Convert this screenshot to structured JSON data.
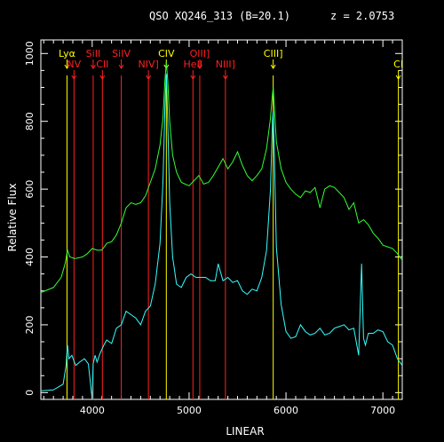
{
  "chart_data": {
    "type": "line",
    "title": "QSO XQ246_313 (B=20.1)",
    "redshift_label": "z = 2.0753",
    "xlabel": "LINEAR",
    "ylabel": "Relative Flux",
    "xlim": [
      3470,
      7200
    ],
    "ylim": [
      -20,
      1040
    ],
    "x_ticks": [
      4000,
      5000,
      6000,
      7000
    ],
    "y_ticks": [
      0,
      200,
      400,
      600,
      800,
      1000
    ],
    "colors": {
      "background": "#000000",
      "frame": "#ffffff",
      "emission_marker": "#ffff00",
      "absorption_marker": "#ff2020",
      "upper_spectrum": "#33ff33",
      "lower_spectrum": "#33ffff"
    },
    "line_markers": [
      {
        "label": "Lyα",
        "wavelength": 3740,
        "color": "yellow",
        "row": 0
      },
      {
        "label": "NV",
        "wavelength": 3812,
        "color": "red",
        "row": 1
      },
      {
        "label": "SiII",
        "wavelength": 4010,
        "color": "red",
        "row": 0
      },
      {
        "label": "CII",
        "wavelength": 4105,
        "color": "red",
        "row": 1
      },
      {
        "label": "SiIV",
        "wavelength": 4300,
        "color": "red",
        "row": 0
      },
      {
        "label": "NIV]",
        "wavelength": 4580,
        "color": "red",
        "row": 1
      },
      {
        "label": "CIV",
        "wavelength": 4765,
        "color": "yellow",
        "row": 0
      },
      {
        "label": "HeII",
        "wavelength": 5040,
        "color": "red",
        "row": 1
      },
      {
        "label": "OIII]",
        "wavelength": 5110,
        "color": "red",
        "row": 0
      },
      {
        "label": "NIII]",
        "wavelength": 5375,
        "color": "red",
        "row": 1
      },
      {
        "label": "CIII]",
        "wavelength": 5868,
        "color": "yellow",
        "row": 0
      },
      {
        "label": "CI",
        "wavelength": 7160,
        "color": "yellow",
        "row": 1
      }
    ],
    "series": [
      {
        "color": "green",
        "x": [
          3470,
          3600,
          3680,
          3720,
          3745,
          3770,
          3820,
          3900,
          3950,
          4000,
          4050,
          4100,
          4150,
          4200,
          4250,
          4300,
          4350,
          4400,
          4450,
          4500,
          4550,
          4600,
          4650,
          4700,
          4730,
          4750,
          4765,
          4780,
          4800,
          4830,
          4870,
          4920,
          5000,
          5050,
          5100,
          5150,
          5200,
          5250,
          5300,
          5350,
          5400,
          5450,
          5500,
          5550,
          5600,
          5650,
          5700,
          5750,
          5800,
          5840,
          5860,
          5868,
          5880,
          5900,
          5950,
          6000,
          6050,
          6100,
          6150,
          6200,
          6250,
          6300,
          6350,
          6400,
          6450,
          6500,
          6550,
          6600,
          6650,
          6700,
          6750,
          6800,
          6850,
          6900,
          6950,
          7000,
          7050,
          7100,
          7150,
          7200
        ],
        "y": [
          295,
          310,
          340,
          380,
          420,
          400,
          395,
          400,
          410,
          425,
          420,
          420,
          440,
          445,
          465,
          500,
          545,
          560,
          555,
          560,
          580,
          620,
          660,
          730,
          810,
          920,
          975,
          920,
          800,
          700,
          650,
          620,
          610,
          625,
          640,
          615,
          620,
          640,
          665,
          690,
          660,
          680,
          710,
          670,
          640,
          625,
          640,
          660,
          720,
          810,
          880,
          900,
          840,
          740,
          660,
          620,
          600,
          585,
          575,
          595,
          590,
          605,
          545,
          600,
          610,
          605,
          590,
          575,
          540,
          560,
          500,
          510,
          495,
          470,
          455,
          435,
          430,
          425,
          410,
          390
        ]
      },
      {
        "color": "cyan",
        "x": [
          3470,
          3600,
          3700,
          3730,
          3745,
          3760,
          3790,
          3830,
          3870,
          3920,
          3960,
          4000,
          4010,
          4030,
          4050,
          4080,
          4120,
          4150,
          4200,
          4250,
          4300,
          4350,
          4400,
          4450,
          4500,
          4550,
          4600,
          4650,
          4700,
          4730,
          4750,
          4765,
          4780,
          4800,
          4830,
          4870,
          4920,
          4970,
          5020,
          5070,
          5120,
          5170,
          5220,
          5270,
          5300,
          5350,
          5400,
          5450,
          5500,
          5550,
          5600,
          5650,
          5700,
          5750,
          5800,
          5840,
          5860,
          5868,
          5880,
          5900,
          5950,
          6000,
          6050,
          6100,
          6150,
          6200,
          6250,
          6300,
          6350,
          6400,
          6450,
          6500,
          6550,
          6600,
          6650,
          6700,
          6750,
          6780,
          6800,
          6820,
          6850,
          6900,
          6950,
          7000,
          7050,
          7100,
          7150,
          7200
        ],
        "y": [
          5,
          8,
          25,
          80,
          140,
          100,
          110,
          80,
          90,
          100,
          85,
          -20,
          85,
          110,
          90,
          115,
          140,
          155,
          145,
          190,
          200,
          240,
          230,
          220,
          200,
          240,
          255,
          320,
          440,
          620,
          840,
          940,
          800,
          560,
          400,
          320,
          310,
          340,
          350,
          340,
          340,
          340,
          330,
          330,
          380,
          330,
          340,
          325,
          330,
          300,
          290,
          305,
          300,
          340,
          420,
          600,
          800,
          830,
          700,
          430,
          260,
          180,
          160,
          165,
          200,
          180,
          170,
          175,
          190,
          170,
          175,
          190,
          195,
          200,
          185,
          190,
          110,
          380,
          160,
          140,
          175,
          175,
          185,
          180,
          150,
          140,
          100,
          80
        ]
      }
    ]
  }
}
